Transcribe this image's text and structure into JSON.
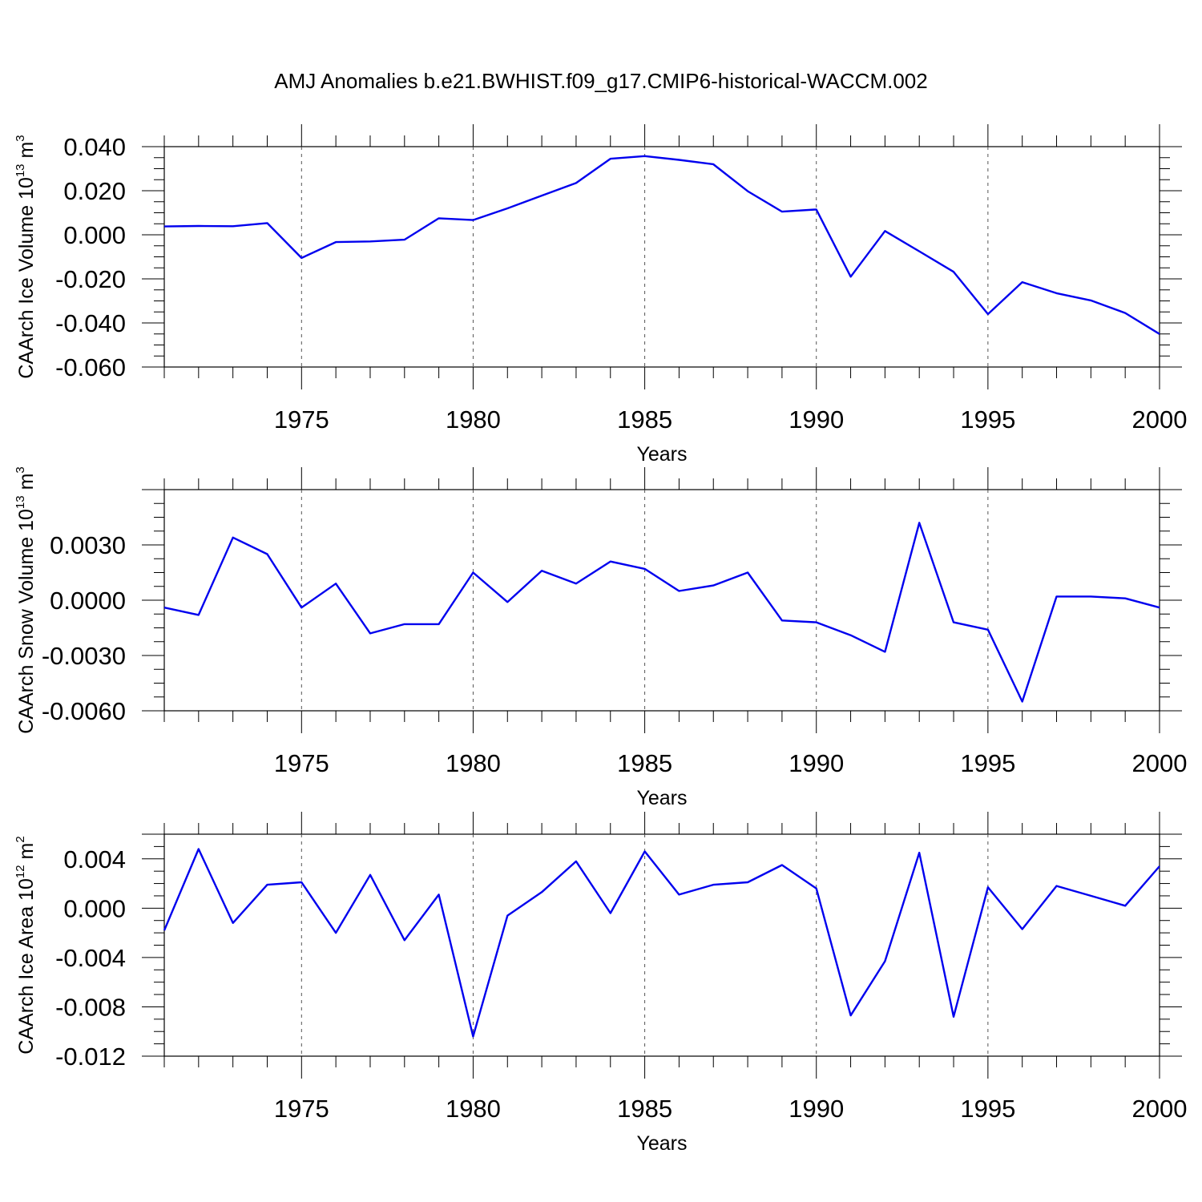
{
  "title": "AMJ Anomalies b.e21.BWHIST.f09_g17.CMIP6-historical-WACCM.002",
  "colors": {
    "series": "#0000ee",
    "axis": "#000000",
    "grid": "#555555"
  },
  "chart_data": [
    {
      "type": "line",
      "ylabel": "CAArch Ice Volume 10",
      "ylabel_exp": "13",
      "ylabel_unit": " m",
      "ylabel_unit_exp": "3",
      "xlabel": "Years",
      "xlim": [
        1971,
        2000
      ],
      "ylim": [
        -0.06,
        0.04
      ],
      "yticks": [
        "0.040",
        "0.020",
        "0.000",
        "-0.020",
        "-0.040",
        "-0.060"
      ],
      "xticks": [
        "1975",
        "1980",
        "1985",
        "1990",
        "1995",
        "2000"
      ],
      "grid": "vertical dashed at major x ticks",
      "x": [
        1971,
        1972,
        1973,
        1974,
        1975,
        1976,
        1977,
        1978,
        1979,
        1980,
        1981,
        1982,
        1983,
        1984,
        1985,
        1986,
        1987,
        1988,
        1989,
        1990,
        1991,
        1992,
        1993,
        1994,
        1995,
        1996,
        1997,
        1998,
        1999,
        2000
      ],
      "values": [
        0.0038,
        0.004,
        0.0039,
        0.0053,
        -0.0105,
        -0.0033,
        -0.003,
        -0.0022,
        0.0075,
        0.0067,
        0.012,
        0.0178,
        0.0235,
        0.0345,
        0.0357,
        0.034,
        0.032,
        0.0198,
        0.0105,
        0.0115,
        -0.019,
        0.0017,
        -0.0075,
        -0.0168,
        -0.036,
        -0.0215,
        -0.0265,
        -0.0298,
        -0.0355,
        -0.045
      ]
    },
    {
      "type": "line",
      "ylabel": "CAArch Snow Volume 10",
      "ylabel_exp": "13",
      "ylabel_unit": " m",
      "ylabel_unit_exp": "3",
      "xlabel": "Years",
      "xlim": [
        1971,
        2000
      ],
      "ylim": [
        -0.006,
        0.006
      ],
      "yticks": [
        "0.0030",
        "0.0000",
        "-0.0030",
        "-0.0060"
      ],
      "xticks": [
        "1975",
        "1980",
        "1985",
        "1990",
        "1995",
        "2000"
      ],
      "grid": "vertical dashed at major x ticks",
      "x": [
        1971,
        1972,
        1973,
        1974,
        1975,
        1976,
        1977,
        1978,
        1979,
        1980,
        1981,
        1982,
        1983,
        1984,
        1985,
        1986,
        1987,
        1988,
        1989,
        1990,
        1991,
        1992,
        1993,
        1994,
        1995,
        1996,
        1997,
        1998,
        1999,
        2000
      ],
      "values": [
        -0.0004,
        -0.0008,
        0.0034,
        0.0025,
        -0.0004,
        0.0009,
        -0.0018,
        -0.0013,
        -0.0013,
        0.0015,
        -0.0001,
        0.0016,
        0.0009,
        0.0021,
        0.0017,
        0.0005,
        0.0008,
        0.0015,
        -0.0011,
        -0.0012,
        -0.0019,
        -0.0028,
        0.0042,
        -0.0012,
        -0.0016,
        -0.0055,
        0.0002,
        0.0002,
        0.0001,
        -0.0004
      ]
    },
    {
      "type": "line",
      "ylabel": "CAArch Ice Area 10",
      "ylabel_exp": "12",
      "ylabel_unit": " m",
      "ylabel_unit_exp": "2",
      "xlabel": "Years",
      "xlim": [
        1971,
        2000
      ],
      "ylim": [
        -0.012,
        0.006
      ],
      "yticks": [
        "0.004",
        "0.000",
        "-0.004",
        "-0.008",
        "-0.012"
      ],
      "xticks": [
        "1975",
        "1980",
        "1985",
        "1990",
        "1995",
        "2000"
      ],
      "grid": "vertical dashed at major x ticks",
      "x": [
        1971,
        1972,
        1973,
        1974,
        1975,
        1976,
        1977,
        1978,
        1979,
        1980,
        1981,
        1982,
        1983,
        1984,
        1985,
        1986,
        1987,
        1988,
        1989,
        1990,
        1991,
        1992,
        1993,
        1994,
        1995,
        1996,
        1997,
        1998,
        1999,
        2000
      ],
      "values": [
        -0.0018,
        0.0048,
        -0.0012,
        0.0019,
        0.0021,
        -0.002,
        0.0027,
        -0.0026,
        0.0011,
        -0.0104,
        -0.0006,
        0.0013,
        0.0038,
        -0.0004,
        0.0046,
        0.0011,
        0.0019,
        0.0021,
        0.0035,
        0.0016,
        -0.0087,
        -0.0043,
        0.0045,
        -0.0088,
        0.0017,
        -0.0017,
        0.0018,
        0.001,
        0.0002,
        0.0034
      ]
    }
  ]
}
